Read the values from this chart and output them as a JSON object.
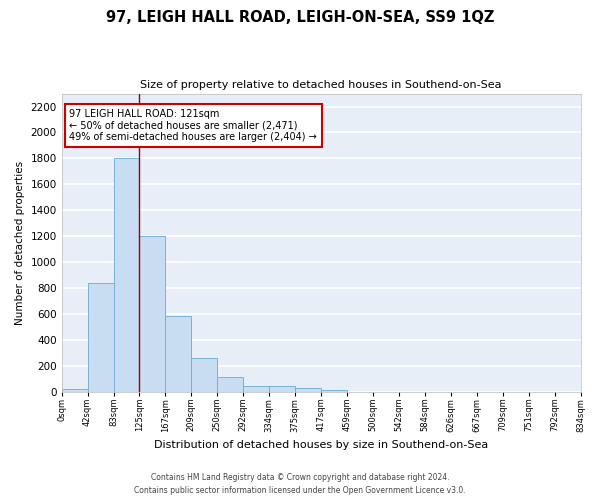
{
  "title": "97, LEIGH HALL ROAD, LEIGH-ON-SEA, SS9 1QZ",
  "subtitle": "Size of property relative to detached houses in Southend-on-Sea",
  "xlabel": "Distribution of detached houses by size in Southend-on-Sea",
  "ylabel": "Number of detached properties",
  "bar_values": [
    25,
    840,
    1800,
    1200,
    590,
    260,
    115,
    50,
    45,
    30,
    20,
    0,
    0,
    0,
    0,
    0,
    0,
    0,
    0,
    0
  ],
  "bar_labels": [
    "0sqm",
    "42sqm",
    "83sqm",
    "125sqm",
    "167sqm",
    "209sqm",
    "250sqm",
    "292sqm",
    "334sqm",
    "375sqm",
    "417sqm",
    "459sqm",
    "500sqm",
    "542sqm",
    "584sqm",
    "626sqm",
    "667sqm",
    "709sqm",
    "751sqm",
    "792sqm",
    "834sqm"
  ],
  "bar_color": "#c9ddf2",
  "bar_edge_color": "#6aabd4",
  "vline_color": "#990000",
  "annotation_text": "97 LEIGH HALL ROAD: 121sqm\n← 50% of detached houses are smaller (2,471)\n49% of semi-detached houses are larger (2,404) →",
  "annotation_box_color": "white",
  "annotation_edge_color": "#cc0000",
  "ylim": [
    0,
    2300
  ],
  "yticks": [
    0,
    200,
    400,
    600,
    800,
    1000,
    1200,
    1400,
    1600,
    1800,
    2000,
    2200
  ],
  "background_color": "#e8eef8",
  "grid_color": "#ffffff",
  "footer_line1": "Contains HM Land Registry data © Crown copyright and database right 2024.",
  "footer_line2": "Contains public sector information licensed under the Open Government Licence v3.0."
}
